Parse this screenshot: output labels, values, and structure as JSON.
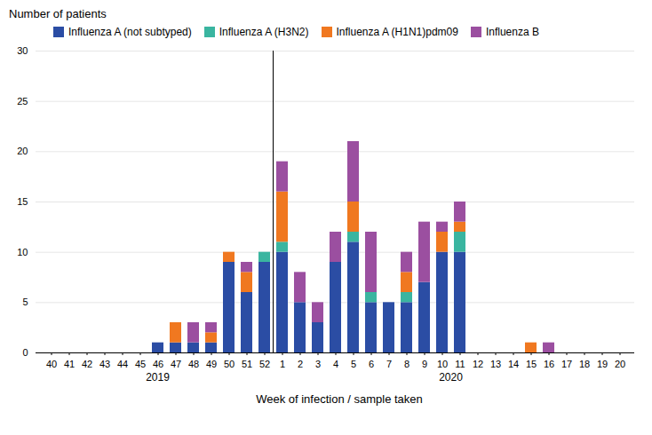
{
  "chart_data": {
    "type": "bar",
    "stacked": true,
    "x_label": "Week of infection / sample taken",
    "y_label": "Number of patients",
    "categories": [
      "40",
      "41",
      "42",
      "43",
      "44",
      "45",
      "46",
      "47",
      "48",
      "49",
      "50",
      "51",
      "52",
      "1",
      "2",
      "3",
      "4",
      "5",
      "6",
      "7",
      "8",
      "9",
      "10",
      "11",
      "12",
      "13",
      "14",
      "15",
      "16",
      "17",
      "18",
      "19",
      "20"
    ],
    "series": [
      {
        "name": "Influenza A (not subtyped)",
        "color": "#2b4da4",
        "values": [
          0,
          0,
          0,
          0,
          0,
          0,
          1,
          1,
          1,
          1,
          9,
          6,
          9,
          10,
          5,
          3,
          9,
          11,
          5,
          5,
          5,
          7,
          10,
          10,
          0,
          0,
          0,
          0,
          0,
          0,
          0,
          0,
          0
        ]
      },
      {
        "name": "Influenza A (H3N2)",
        "color": "#3ab5a0",
        "values": [
          0,
          0,
          0,
          0,
          0,
          0,
          0,
          0,
          0,
          0,
          0,
          0,
          1,
          1,
          0,
          0,
          0,
          1,
          1,
          0,
          1,
          0,
          0,
          2,
          0,
          0,
          0,
          0,
          0,
          0,
          0,
          0,
          0
        ]
      },
      {
        "name": "Influenza A (H1N1)pdm09",
        "color": "#f07820",
        "values": [
          0,
          0,
          0,
          0,
          0,
          0,
          0,
          2,
          0,
          1,
          1,
          2,
          0,
          5,
          0,
          0,
          0,
          3,
          0,
          0,
          2,
          0,
          2,
          1,
          0,
          0,
          0,
          1,
          0,
          0,
          0,
          0,
          0
        ]
      },
      {
        "name": "Influenza B",
        "color": "#9b4fa0",
        "values": [
          0,
          0,
          0,
          0,
          0,
          0,
          0,
          0,
          2,
          1,
          0,
          1,
          0,
          3,
          3,
          2,
          3,
          6,
          6,
          0,
          2,
          6,
          1,
          2,
          0,
          0,
          0,
          0,
          1,
          0,
          0,
          0,
          0
        ]
      }
    ],
    "ylim": [
      0,
      30
    ],
    "yticks": [
      0,
      5,
      10,
      15,
      20,
      25,
      30
    ],
    "grid": true,
    "legend": "top",
    "annotations": [
      {
        "text": "2019",
        "categories": [
          "40",
          "52"
        ]
      },
      {
        "text": "2020",
        "categories": [
          "1",
          "20"
        ]
      }
    ]
  }
}
